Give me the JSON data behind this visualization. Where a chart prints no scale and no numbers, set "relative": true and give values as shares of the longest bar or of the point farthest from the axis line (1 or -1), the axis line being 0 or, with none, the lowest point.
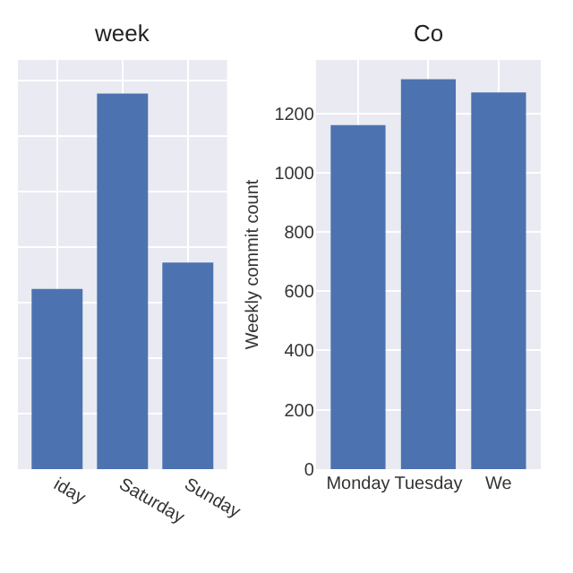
{
  "chart_data": [
    {
      "type": "bar",
      "title": "week",
      "categories": [
        "iday",
        "Saturday",
        "Sunday"
      ],
      "relative": true,
      "color": "#4c72b0",
      "values": [
        0.48,
        1,
        0.55
      ],
      "grid": true
    },
    {
      "type": "bar",
      "title": "Co",
      "ylabel": "Weekly commit count",
      "categories": [
        "Monday",
        "Tuesday",
        "We"
      ],
      "color": "#4c72b0",
      "values": [
        1160,
        1315,
        1270
      ],
      "ylim": [
        0,
        1380
      ],
      "yticks": [
        0,
        200,
        400,
        600,
        800,
        1000,
        1200
      ],
      "grid": true
    }
  ]
}
